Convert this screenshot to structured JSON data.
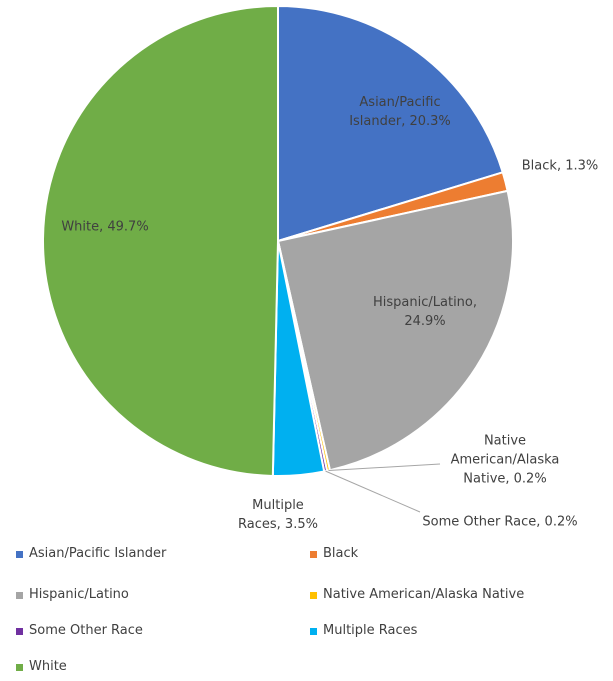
{
  "chart_data": {
    "type": "pie",
    "categories": [
      "Asian/Pacific Islander",
      "Black",
      "Hispanic/Latino",
      "Native American/Alaska Native",
      "Some Other Race",
      "Multiple Races",
      "White"
    ],
    "values": [
      20.3,
      1.3,
      24.9,
      0.2,
      0.2,
      3.5,
      49.7
    ],
    "value_labels": [
      "Asian/Pacific Islander, 20.3%",
      "Black, 1.3%",
      "Hispanic/Latino, 24.9%",
      "Native American/Alaska Native, 0.2%",
      "Some Other Race, 0.2%",
      "Multiple Races, 3.5%",
      "White, 49.7%"
    ],
    "colors": [
      "#4472c4",
      "#ed7d31",
      "#a5a5a5",
      "#ffc000",
      "#7030a0",
      "#00b0f0",
      "#70ad47"
    ],
    "legend": "bottom"
  }
}
